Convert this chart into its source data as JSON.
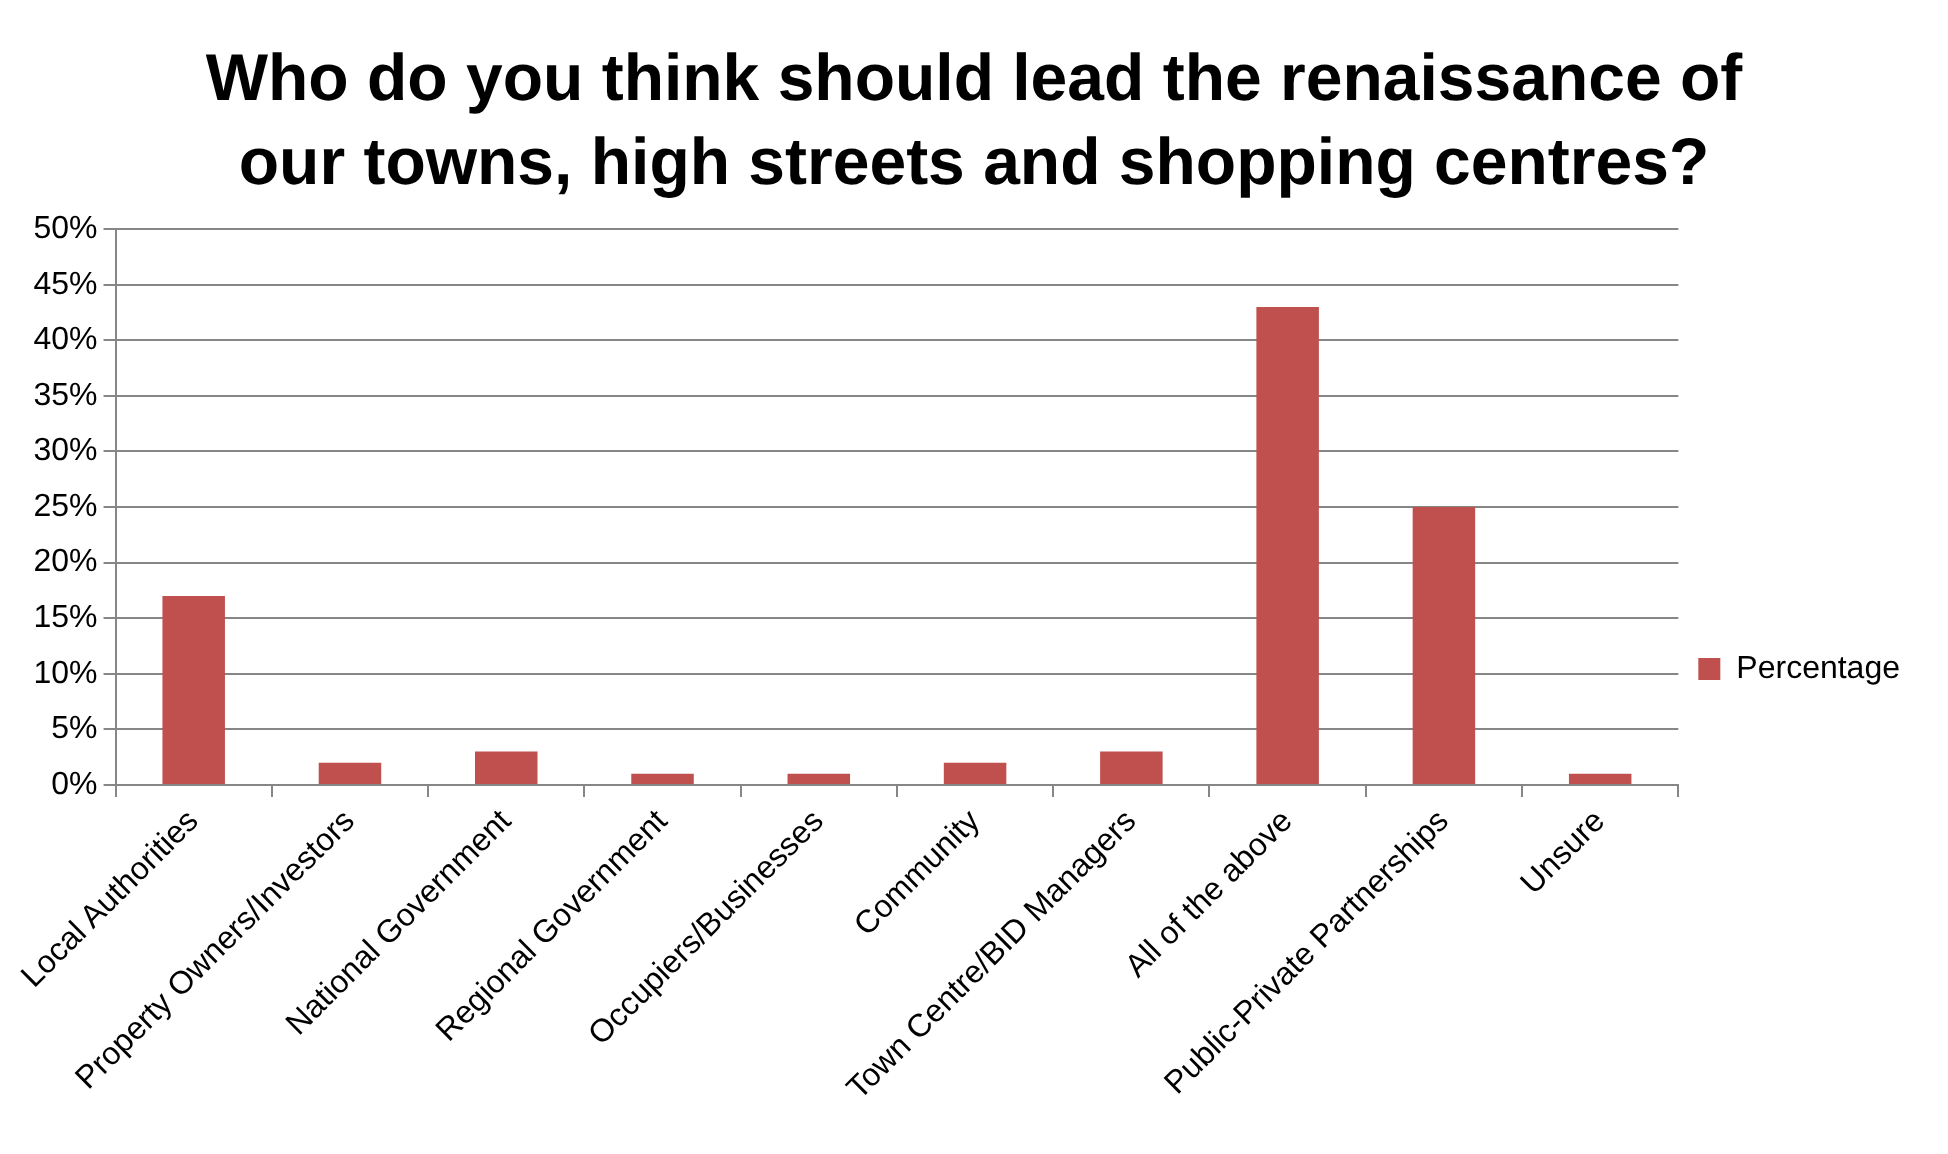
{
  "chart_data": {
    "type": "bar",
    "title": "Who do you think should lead the renaissance of our towns, high streets and shopping centres?",
    "categories": [
      "Local Authorities",
      "Property Owners/Investors",
      "National Government",
      "Regional Government",
      "Occupiers/Businesses",
      "Community",
      "Town Centre/BID Managers",
      "All of the above",
      "Public-Private Partnerships",
      "Unsure"
    ],
    "series": [
      {
        "name": "Percentage",
        "color": "#c0504d",
        "values": [
          17,
          2,
          3,
          1,
          1,
          2,
          3,
          43,
          25,
          1
        ]
      }
    ],
    "ylim": [
      0,
      50
    ],
    "yticks": [
      {
        "value": 0,
        "label": "0%"
      },
      {
        "value": 5,
        "label": "5%"
      },
      {
        "value": 10,
        "label": "10%"
      },
      {
        "value": 15,
        "label": "15%"
      },
      {
        "value": 20,
        "label": "20%"
      },
      {
        "value": 25,
        "label": "25%"
      },
      {
        "value": 30,
        "label": "30%"
      },
      {
        "value": 35,
        "label": "35%"
      },
      {
        "value": 40,
        "label": "40%"
      },
      {
        "value": 45,
        "label": "45%"
      },
      {
        "value": 50,
        "label": "50%"
      }
    ],
    "grid": "y",
    "legend": "right"
  }
}
